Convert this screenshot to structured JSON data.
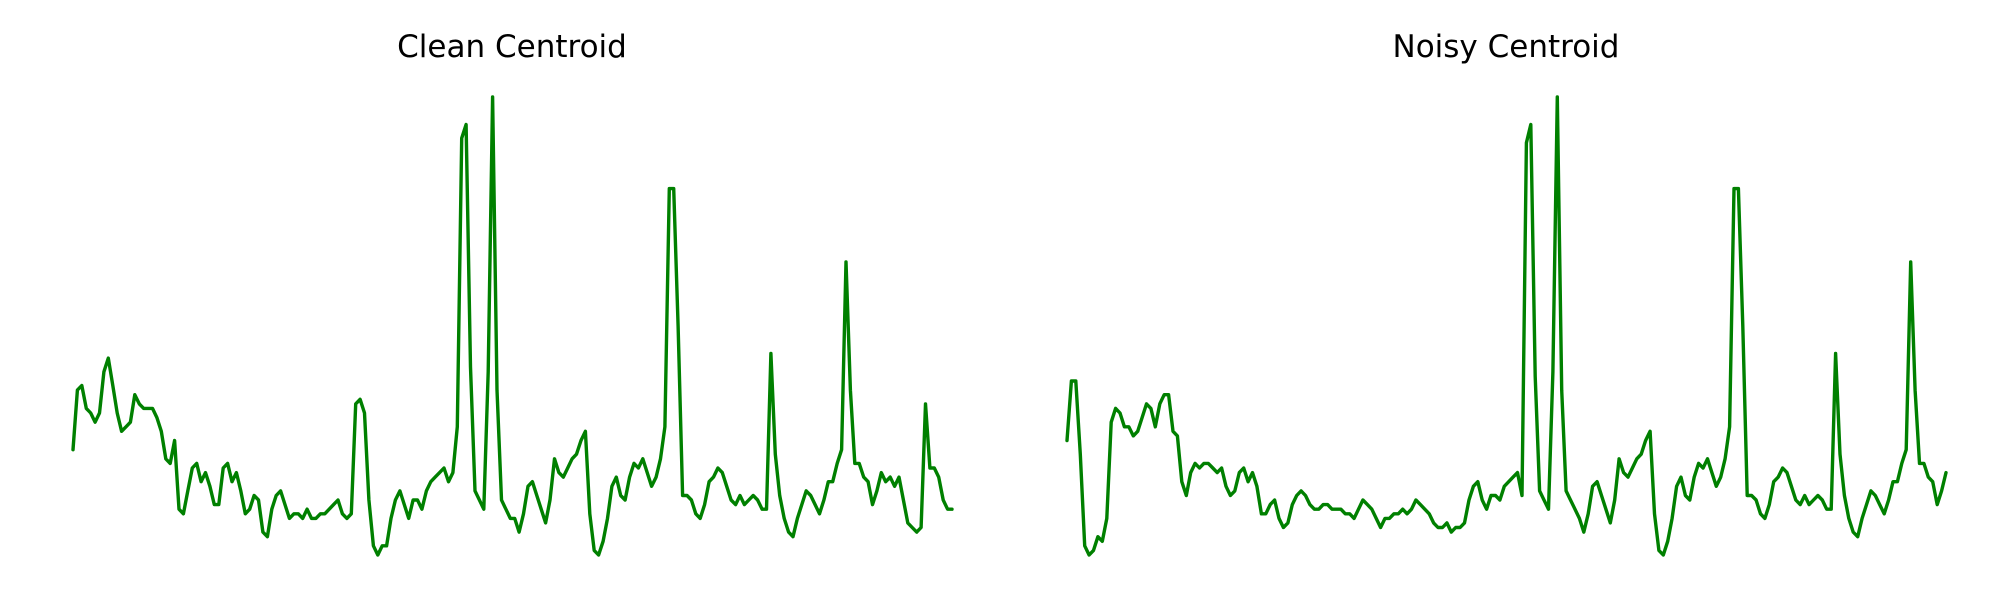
{
  "chart_data": [
    {
      "type": "line",
      "title": "Clean Centroid",
      "xlabel": "",
      "ylabel": "",
      "axes": "off",
      "grid": false,
      "ylim": [
        0,
        100
      ],
      "color": "#008000",
      "x": [
        0,
        1,
        2,
        3,
        4,
        5,
        6,
        7,
        8,
        9,
        10,
        11,
        12,
        13,
        14,
        15,
        16,
        17,
        18,
        19,
        20,
        21,
        22,
        23,
        24,
        25,
        26,
        27,
        28,
        29,
        30,
        31,
        32,
        33,
        34,
        35,
        36,
        37,
        38,
        39,
        40,
        41,
        42,
        43,
        44,
        45,
        46,
        47,
        48,
        49,
        50,
        51,
        52,
        53,
        54,
        55,
        56,
        57,
        58,
        59,
        60,
        61,
        62,
        63,
        64,
        65,
        66,
        67,
        68,
        69,
        70,
        71,
        72,
        73,
        74,
        75,
        76,
        77,
        78,
        79,
        80,
        81,
        82,
        83,
        84,
        85,
        86,
        87,
        88,
        89,
        90,
        91,
        92,
        93,
        94,
        95,
        96,
        97,
        98,
        99,
        100,
        101,
        102,
        103,
        104,
        105,
        106,
        107,
        108,
        109,
        110,
        111,
        112,
        113,
        114,
        115,
        116,
        117,
        118,
        119,
        120,
        121,
        122,
        123,
        124,
        125,
        126,
        127,
        128,
        129,
        130,
        131,
        132,
        133,
        134,
        135,
        136,
        137,
        138,
        139,
        140,
        141,
        142,
        143,
        144,
        145,
        146,
        147,
        148,
        149,
        150,
        151,
        152,
        153,
        154,
        155,
        156,
        157,
        158,
        159,
        160,
        161,
        162,
        163,
        164,
        165,
        166,
        167,
        168,
        169,
        170,
        171,
        172,
        173,
        174,
        175,
        176,
        177,
        178,
        179,
        180,
        181,
        182,
        183,
        184,
        185,
        186,
        187,
        188,
        189,
        190,
        191,
        192,
        193,
        194,
        195,
        196,
        197,
        198,
        199
      ],
      "values": [
        23,
        36,
        37,
        32,
        31,
        29,
        31,
        40,
        43,
        37,
        31,
        27,
        28,
        29,
        35,
        33,
        32,
        32,
        32,
        30,
        27,
        21,
        20,
        25,
        10,
        9,
        14,
        19,
        20,
        16,
        18,
        15,
        11,
        11,
        19,
        20,
        16,
        18,
        14,
        9,
        10,
        13,
        12,
        5,
        4,
        10,
        13,
        14,
        11,
        8,
        9,
        9,
        8,
        10,
        8,
        8,
        9,
        9,
        10,
        11,
        12,
        9,
        8,
        9,
        33,
        34,
        31,
        12,
        2,
        0,
        2,
        2,
        8,
        12,
        14,
        11,
        8,
        12,
        12,
        10,
        14,
        16,
        17,
        18,
        19,
        16,
        18,
        28,
        91,
        94,
        41,
        14,
        12,
        10,
        40,
        100,
        36,
        12,
        10,
        8,
        8,
        5,
        9,
        15,
        16,
        13,
        10,
        7,
        12,
        21,
        18,
        17,
        19,
        21,
        22,
        25,
        27,
        9,
        1,
        0,
        3,
        8,
        15,
        17,
        13,
        12,
        17,
        20,
        19,
        21,
        18,
        15,
        17,
        21,
        28,
        80,
        80,
        50,
        13,
        13,
        12,
        9,
        8,
        11,
        16,
        17,
        19,
        18,
        15,
        12,
        11,
        13,
        11,
        12,
        13,
        12,
        10,
        10,
        44,
        22,
        13,
        8,
        5,
        4,
        8,
        11,
        14,
        13,
        11,
        9,
        12,
        16,
        16,
        20,
        23,
        64,
        36,
        20,
        20,
        17,
        16,
        11,
        14,
        18,
        16,
        17,
        15,
        17,
        12,
        7,
        6,
        5,
        6,
        33,
        19,
        19,
        17,
        12,
        10,
        10
      ]
    },
    {
      "type": "line",
      "title": "Noisy Centroid",
      "xlabel": "",
      "ylabel": "",
      "axes": "off",
      "grid": false,
      "ylim": [
        0,
        100
      ],
      "color": "#008000",
      "x": [
        0,
        1,
        2,
        3,
        4,
        5,
        6,
        7,
        8,
        9,
        10,
        11,
        12,
        13,
        14,
        15,
        16,
        17,
        18,
        19,
        20,
        21,
        22,
        23,
        24,
        25,
        26,
        27,
        28,
        29,
        30,
        31,
        32,
        33,
        34,
        35,
        36,
        37,
        38,
        39,
        40,
        41,
        42,
        43,
        44,
        45,
        46,
        47,
        48,
        49,
        50,
        51,
        52,
        53,
        54,
        55,
        56,
        57,
        58,
        59,
        60,
        61,
        62,
        63,
        64,
        65,
        66,
        67,
        68,
        69,
        70,
        71,
        72,
        73,
        74,
        75,
        76,
        77,
        78,
        79,
        80,
        81,
        82,
        83,
        84,
        85,
        86,
        87,
        88,
        89,
        90,
        91,
        92,
        93,
        94,
        95,
        96,
        97,
        98,
        99,
        100,
        101,
        102,
        103,
        104,
        105,
        106,
        107,
        108,
        109,
        110,
        111,
        112,
        113,
        114,
        115,
        116,
        117,
        118,
        119,
        120,
        121,
        122,
        123,
        124,
        125,
        126,
        127,
        128,
        129,
        130,
        131,
        132,
        133,
        134,
        135,
        136,
        137,
        138,
        139,
        140,
        141,
        142,
        143,
        144,
        145,
        146,
        147,
        148,
        149,
        150,
        151,
        152,
        153,
        154,
        155,
        156,
        157,
        158,
        159,
        160,
        161,
        162,
        163,
        164,
        165,
        166,
        167,
        168,
        169,
        170,
        171,
        172,
        173,
        174,
        175,
        176,
        177,
        178,
        179,
        180,
        181,
        182,
        183,
        184,
        185,
        186,
        187,
        188,
        189,
        190,
        191,
        192,
        193,
        194,
        195,
        196,
        197,
        198,
        199
      ],
      "values": [
        25,
        38,
        38,
        22,
        2,
        0,
        1,
        4,
        3,
        8,
        29,
        32,
        31,
        28,
        28,
        26,
        27,
        30,
        33,
        32,
        28,
        33,
        35,
        35,
        27,
        26,
        16,
        13,
        18,
        20,
        19,
        20,
        20,
        19,
        18,
        19,
        15,
        13,
        14,
        18,
        19,
        16,
        18,
        15,
        9,
        9,
        11,
        12,
        8,
        6,
        7,
        11,
        13,
        14,
        13,
        11,
        10,
        10,
        11,
        11,
        10,
        10,
        10,
        9,
        9,
        8,
        10,
        12,
        11,
        10,
        8,
        6,
        8,
        8,
        9,
        9,
        10,
        9,
        10,
        12,
        11,
        10,
        9,
        7,
        6,
        6,
        7,
        5,
        6,
        6,
        7,
        12,
        15,
        16,
        12,
        10,
        13,
        13,
        12,
        15,
        16,
        17,
        18,
        13,
        90,
        94,
        39,
        14,
        12,
        10,
        40,
        100,
        36,
        14,
        12,
        10,
        8,
        5,
        9,
        15,
        16,
        13,
        10,
        7,
        12,
        21,
        18,
        17,
        19,
        21,
        22,
        25,
        27,
        9,
        1,
        0,
        3,
        8,
        15,
        17,
        13,
        12,
        17,
        20,
        19,
        21,
        18,
        15,
        17,
        21,
        28,
        80,
        80,
        50,
        13,
        13,
        12,
        9,
        8,
        11,
        16,
        17,
        19,
        18,
        15,
        12,
        11,
        13,
        11,
        12,
        13,
        12,
        10,
        10,
        44,
        22,
        13,
        8,
        5,
        4,
        8,
        11,
        14,
        13,
        11,
        9,
        12,
        16,
        16,
        20,
        23,
        64,
        36,
        20,
        20,
        17,
        16,
        11,
        14,
        18
      ]
    }
  ]
}
